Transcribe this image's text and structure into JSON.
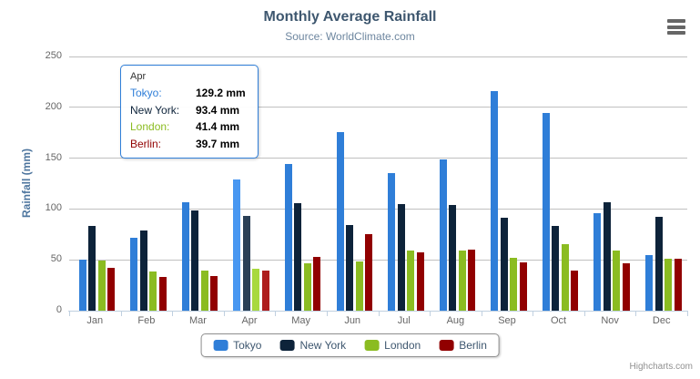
{
  "chart": {
    "title": "Monthly Average Rainfall",
    "subtitle": "Source: WorldClimate.com",
    "credits": "Highcharts.com",
    "export_menu_icon": "hamburger-menu-icon"
  },
  "chart_data": {
    "type": "bar",
    "title": "Monthly Average Rainfall",
    "subtitle": "Source: WorldClimate.com",
    "xlabel": "",
    "ylabel": "Rainfall (mm)",
    "ylim": [
      0,
      250
    ],
    "ytick_interval": 50,
    "yticks": [
      0,
      50,
      100,
      150,
      200,
      250
    ],
    "grid": true,
    "legend_position": "bottom",
    "categories": [
      "Jan",
      "Feb",
      "Mar",
      "Apr",
      "May",
      "Jun",
      "Jul",
      "Aug",
      "Sep",
      "Oct",
      "Nov",
      "Dec"
    ],
    "series": [
      {
        "name": "Tokyo",
        "color": "#2f7ed8",
        "hover_color": "#4897f1",
        "values": [
          49.9,
          71.5,
          106.4,
          129.2,
          144.0,
          176.0,
          135.6,
          148.5,
          216.4,
          194.1,
          95.6,
          54.4
        ]
      },
      {
        "name": "New York",
        "color": "#0d233a",
        "hover_color": "#2a4057",
        "values": [
          83.6,
          78.8,
          98.5,
          93.4,
          106.0,
          84.5,
          105.0,
          104.3,
          91.2,
          83.5,
          106.6,
          92.3
        ]
      },
      {
        "name": "London",
        "color": "#8bbc21",
        "hover_color": "#a8d93e",
        "values": [
          48.9,
          38.8,
          39.3,
          41.4,
          47.0,
          48.3,
          59.0,
          59.6,
          52.4,
          65.2,
          59.3,
          51.2
        ]
      },
      {
        "name": "Berlin",
        "color": "#910000",
        "hover_color": "#ae1d1d",
        "values": [
          42.4,
          33.2,
          34.5,
          39.7,
          52.6,
          75.5,
          57.4,
          60.4,
          47.6,
          39.1,
          46.8,
          51.1
        ]
      }
    ],
    "hovered_category": "Apr",
    "hovered_category_index": 3
  },
  "tooltip": {
    "header": "Apr",
    "rows": [
      {
        "label": "Tokyo:",
        "value": "129.2 mm",
        "color": "#2f7ed8"
      },
      {
        "label": "New York:",
        "value": "93.4 mm",
        "color": "#0d233a"
      },
      {
        "label": "London:",
        "value": "41.4 mm",
        "color": "#8bbc21"
      },
      {
        "label": "Berlin:",
        "value": "39.7 mm",
        "color": "#910000"
      }
    ]
  },
  "style": {
    "grid_color": "#C0C0C0",
    "axis_line_color": "#C0D0E0",
    "axis_label_color": "#666666",
    "title_color": "#3E576F",
    "subtitle_color": "#6D869F",
    "y_title_color": "#4d759e",
    "legend_text_color": "#3E576F"
  }
}
